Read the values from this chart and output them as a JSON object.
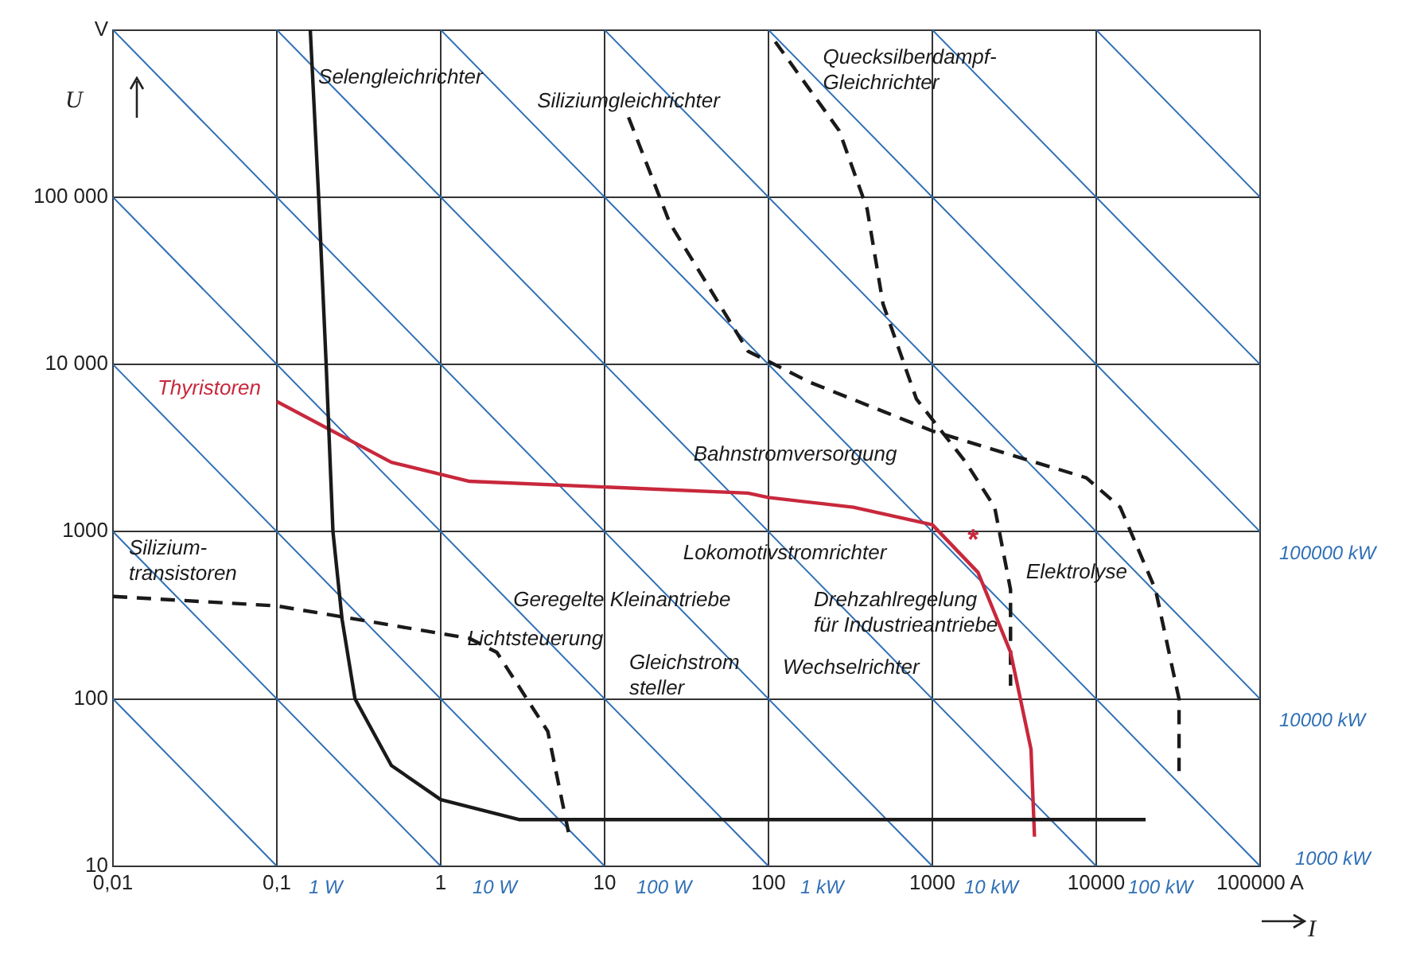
{
  "chart_data": {
    "type": "line",
    "xlabel": "I",
    "ylabel": "U",
    "log": "xy",
    "grid": true,
    "legend": false,
    "marker": "none",
    "xlim": [
      0.01,
      100000
    ],
    "ylim": [
      10,
      1000000
    ],
    "xticks": [
      {
        "value": 0.01,
        "label": "0,01"
      },
      {
        "value": 0.1,
        "label": "0,1"
      },
      1,
      10,
      100,
      1000,
      10000,
      {
        "value": 100000,
        "label": "100000 A"
      }
    ],
    "yticks": [
      10,
      100,
      1000,
      {
        "value": 10000,
        "label": "10 000"
      },
      {
        "value": 100000,
        "label": "100 000"
      },
      {
        "value": 1000000,
        "label": "V"
      }
    ],
    "series": [
      {
        "name": "Selengleichrichter",
        "color": "#1a1a1a",
        "line_style": "solid",
        "x": [
          0.16,
          0.18,
          0.2,
          0.22,
          0.25,
          0.3,
          0.5,
          1,
          3,
          20000
        ],
        "values": [
          1000000,
          100000,
          10000,
          1000,
          300,
          100,
          40,
          25,
          19,
          19
        ]
      },
      {
        "name": "Thyristoren",
        "color": "#c8283c",
        "line_style": "solid",
        "x": [
          0.1,
          0.5,
          1.5,
          75,
          100,
          330,
          1000,
          1900,
          3000,
          4000,
          4200
        ],
        "values": [
          6000,
          2600,
          2000,
          1700,
          1600,
          1400,
          1100,
          570,
          190,
          50,
          15
        ]
      },
      {
        "name": "Silizium-\ntransistoren",
        "color": "#1a1a1a",
        "line_style": "dashed",
        "x": [
          0.01,
          0.1,
          1.5,
          2.2,
          4.5,
          6.1
        ],
        "values": [
          410,
          360,
          230,
          190,
          64,
          15
        ]
      },
      {
        "name": "Siliziumgleichrichter",
        "color": "#1a1a1a",
        "line_style": "dashed",
        "x": [
          14,
          25,
          50,
          75,
          180,
          1000,
          8700,
          14000,
          23000,
          32000,
          32000
        ],
        "values": [
          300000,
          70000,
          23000,
          12000,
          7800,
          4000,
          2100,
          1400,
          450,
          100,
          37
        ]
      },
      {
        "name": "Quecksilberdampf-\nGleichrichter",
        "color": "#1a1a1a",
        "line_style": "dashed",
        "x": [
          110,
          270,
          400,
          500,
          800,
          1600,
          2400,
          3000,
          3000
        ],
        "values": [
          850000,
          250000,
          85000,
          23000,
          6200,
          2600,
          1400,
          450,
          120
        ]
      },
      {
        "name": "1 W",
        "color": "#2f6fb5",
        "line_style": "solid",
        "x": [
          0.01,
          0.1
        ],
        "values": [
          100,
          10
        ]
      },
      {
        "name": "10 W",
        "color": "#2f6fb5",
        "line_style": "solid",
        "x": [
          0.01,
          1
        ],
        "values": [
          1000,
          10
        ]
      },
      {
        "name": "100 W",
        "color": "#2f6fb5",
        "line_style": "solid",
        "x": [
          0.01,
          10
        ],
        "values": [
          10000,
          10
        ]
      },
      {
        "name": "1 kW",
        "color": "#2f6fb5",
        "line_style": "solid",
        "x": [
          0.01,
          100
        ],
        "values": [
          100000,
          10
        ]
      },
      {
        "name": "10 kW",
        "color": "#2f6fb5",
        "line_style": "solid",
        "x": [
          0.01,
          1000
        ],
        "values": [
          1000000,
          10
        ]
      },
      {
        "name": "100 kW",
        "color": "#2f6fb5",
        "line_style": "solid",
        "x": [
          0.1,
          10000
        ],
        "values": [
          1000000,
          10
        ]
      },
      {
        "name": "1000 kW",
        "color": "#2f6fb5",
        "line_style": "solid",
        "x": [
          1,
          100000
        ],
        "values": [
          1000000,
          10
        ]
      },
      {
        "name": "10000 kW",
        "color": "#2f6fb5",
        "line_style": "solid",
        "x": [
          10,
          100000
        ],
        "values": [
          1000000,
          100
        ]
      },
      {
        "name": "100000 kW",
        "color": "#2f6fb5",
        "line_style": "solid",
        "x": [
          100,
          100000
        ],
        "values": [
          1000000,
          1000
        ]
      },
      {
        "color": "#2f6fb5",
        "line_style": "solid",
        "x": [
          1000,
          100000
        ],
        "values": [
          1000000,
          10000
        ]
      },
      {
        "color": "#2f6fb5",
        "line_style": "solid",
        "x": [
          10000,
          100000
        ],
        "values": [
          1000000,
          100000
        ]
      }
    ],
    "annotations": [
      "Bahnstromversorgung",
      "Lokomotivstromrichter",
      "Geregelte Kleinantriebe",
      "Lichtsteuerung",
      "Gleichstrom\nsteller",
      "Drehzahlregelung\nfür Industrieantriebe",
      "Wechselrichter",
      "Elektrolyse",
      "*"
    ]
  }
}
